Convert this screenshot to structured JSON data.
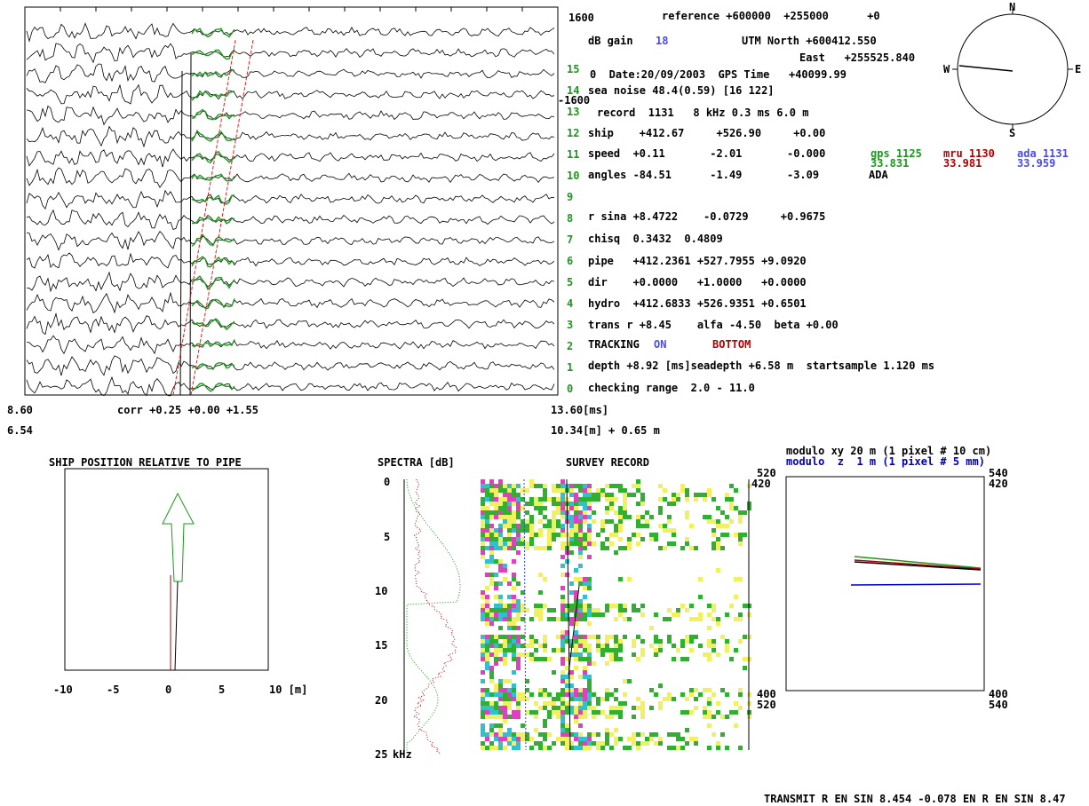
{
  "waveform_panel": {
    "scale_top": "1600",
    "scale_bottom": "-1600",
    "channels": [
      "15",
      "14",
      "13",
      "12",
      "11",
      "10",
      "9",
      "8",
      "7",
      "6",
      "5",
      "4",
      "3",
      "2",
      "1",
      "0"
    ],
    "time_start": "8.60",
    "corr": "corr +0.25 +0.00 +1.55",
    "time_end": "13.60[ms]",
    "dist_start": "6.54",
    "dist_end": "10.34[m] + 0.65 m"
  },
  "info": {
    "reference": "reference +600000  +255000      +0",
    "db_gain_label": "dB gain",
    "db_gain_value": "18",
    "utm_north": "UTM North +600412.550",
    "utm_east": "East   +255525.840",
    "date": "0  Date:20/09/2003  GPS Time   +40099.99",
    "sea_noise": "sea noise 48.4(0.59) [16 122]",
    "record": "record  1131   8 kHz 0.3 ms 6.0 m",
    "ship": "ship    +412.67     +526.90     +0.00",
    "speed": "speed  +0.11       -2.01       -0.000",
    "gps_label": "gps 1125",
    "gps_value": "33.831",
    "mru_label": "mru 1130",
    "mru_value": "33.981",
    "ada_label": "ada 1131",
    "ada_value": "33.959",
    "angles": "angles -84.51      -1.49       -3.09",
    "angles_source": "ADA",
    "r_sina": "r sina +8.4722    -0.0729     +0.9675",
    "chisq": "chisq  0.3432  0.4809",
    "pipe": "pipe   +412.2361 +527.7955 +9.0920",
    "dir": "dir    +0.0000   +1.0000   +0.0000",
    "hydro": "hydro  +412.6833 +526.9351 +0.6501",
    "trans": "trans r +8.45    alfa -4.50  beta +0.00",
    "tracking_label": "TRACKING",
    "tracking_state": "ON",
    "tracking_mode": "BOTTOM",
    "depth": "depth +8.92 [ms]seadepth +6.58 m  startsample 1.120 ms",
    "checking_range": "checking range  2.0 - 11.0"
  },
  "compass": {
    "north": "N",
    "east": "E",
    "south": "S",
    "west": "W"
  },
  "ship_position": {
    "title": "SHIP POSITION RELATIVE TO PIPE",
    "ticks": [
      "-10",
      "-5",
      "0",
      "5",
      "10 [m]"
    ]
  },
  "spectra": {
    "title": "SPECTRA [dB]",
    "ticks": [
      "0",
      "5",
      "10",
      "15",
      "20",
      "25"
    ],
    "unit": "kHz"
  },
  "survey_record": {
    "title": "SURVEY RECORD"
  },
  "modulo_panel": {
    "line_xy": "modulo xy 20 m (1 pixel # 10 cm)",
    "line_z": "modulo  z  1 m (1 pixel # 5 mm)",
    "top_left_x": "520",
    "top_left_y": "420",
    "top_right_x": "540",
    "top_right_y": "420",
    "bottom_left_y": "400",
    "bottom_left_x": "520",
    "bottom_right_y": "400",
    "bottom_right_x": "540"
  },
  "footer": "TRANSMIT R EN SIN 8.454 -0.078 EN R EN SIN 8.47"
}
